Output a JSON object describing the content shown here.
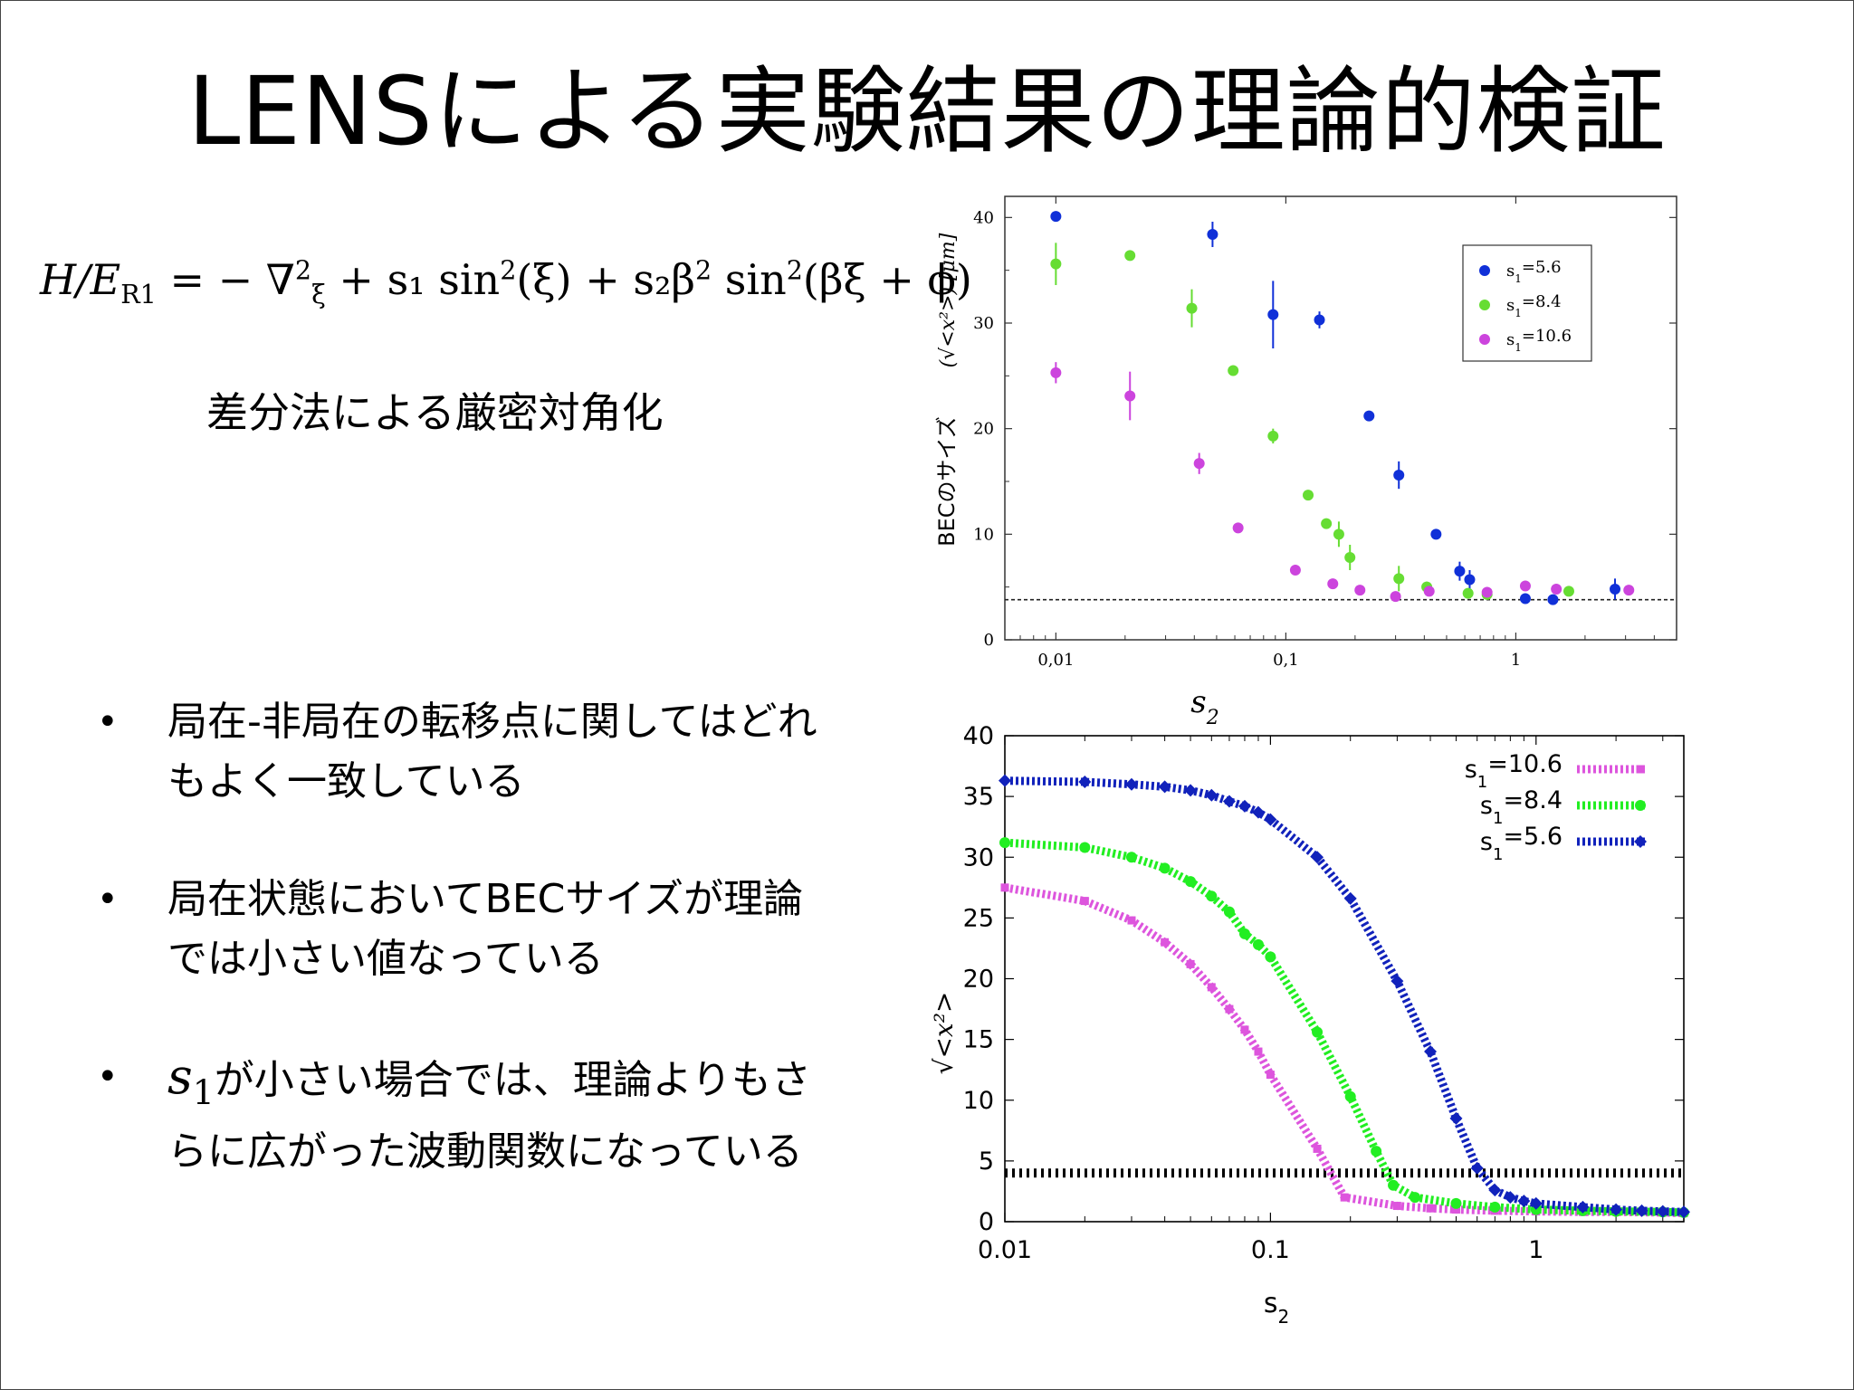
{
  "slide": {
    "title": "LENSによる実験結果の理論的検証",
    "formula": {
      "lhs": "H/E",
      "lhs_sub": "R1",
      "rhs": "= − ∇",
      "nabla_sup": "2",
      "nabla_sub": "ξ",
      "term1": "+ s₁ sin",
      "sin_sup": "2",
      "term1b": "(ξ) + s₂β",
      "beta_sup": "2",
      "term2": " sin",
      "sin2_sup": "2",
      "term2b": "(βξ + ϕ)"
    },
    "subcaption": "差分法による厳密対角化",
    "bullets": [
      {
        "line1": "局在-非局在の転移点に関してはどれ",
        "line2": "もよく一致している"
      },
      {
        "line1": "局在状態においてBECサイズが理論",
        "line2": "では小さい値なっている"
      },
      {
        "var": "s",
        "var_sub": "1",
        "line1": "が小さい場合では、理論よりもさ",
        "line2": "らに広がった波動関数になっている"
      }
    ],
    "bullet_symbol": "•"
  },
  "chart_data": [
    {
      "type": "scatter",
      "title": "",
      "xscale": "log",
      "xlim": [
        0.006,
        5
      ],
      "ylim": [
        0,
        42
      ],
      "xlabel": "s",
      "xlabel_sub": "2",
      "ylabel": "BECのサイズ",
      "ylabel_math": "(√<x²>) [μm]",
      "xticks": [
        0.01,
        0.1,
        1
      ],
      "xtick_labels": [
        "0,01",
        "0,1",
        "1"
      ],
      "yticks": [
        0,
        10,
        20,
        30,
        40
      ],
      "ytick_labels": [
        "0",
        "10",
        "20",
        "30",
        "40"
      ],
      "reference_line": 3.8,
      "legend_position": "top-right",
      "series": [
        {
          "name": "s",
          "name_sub": "1",
          "name_rest": "=5.6",
          "color": "#1030d8",
          "points": [
            [
              0.01,
              40.1,
              0
            ],
            [
              0.048,
              38.4,
              1.2
            ],
            [
              0.088,
              30.8,
              3.2
            ],
            [
              0.14,
              30.3,
              0.8
            ],
            [
              0.23,
              21.2,
              0
            ],
            [
              0.31,
              15.6,
              1.3
            ],
            [
              0.45,
              10,
              0
            ],
            [
              0.57,
              6.5,
              0.9
            ],
            [
              0.63,
              5.7,
              0.9
            ],
            [
              1.1,
              3.9,
              0
            ],
            [
              1.45,
              3.8,
              0
            ],
            [
              2.7,
              4.8,
              1.0
            ]
          ]
        },
        {
          "name": "s",
          "name_sub": "1",
          "name_rest": "=8.4",
          "color": "#66dd33",
          "points": [
            [
              0.01,
              35.6,
              2.0
            ],
            [
              0.021,
              36.4,
              0
            ],
            [
              0.039,
              31.4,
              1.8
            ],
            [
              0.059,
              25.5,
              0
            ],
            [
              0.088,
              19.3,
              0.7
            ],
            [
              0.125,
              13.7,
              0
            ],
            [
              0.15,
              11,
              0
            ],
            [
              0.17,
              10,
              1.2
            ],
            [
              0.19,
              7.8,
              1.2
            ],
            [
              0.31,
              5.8,
              1.2
            ],
            [
              0.41,
              5,
              0.5
            ],
            [
              0.62,
              4.4,
              0
            ],
            [
              0.75,
              4.3,
              0
            ],
            [
              1.7,
              4.6,
              0
            ]
          ]
        },
        {
          "name": "s",
          "name_sub": "1",
          "name_rest": "=10.6",
          "color": "#cc44dd",
          "points": [
            [
              0.01,
              25.3,
              1.0
            ],
            [
              0.021,
              23.1,
              2.3
            ],
            [
              0.042,
              16.7,
              1.0
            ],
            [
              0.062,
              10.6,
              0
            ],
            [
              0.11,
              6.6,
              0
            ],
            [
              0.16,
              5.3,
              0
            ],
            [
              0.21,
              4.7,
              0
            ],
            [
              0.3,
              4.1,
              0
            ],
            [
              0.42,
              4.6,
              0
            ],
            [
              0.75,
              4.5,
              0
            ],
            [
              1.1,
              5.1,
              0
            ],
            [
              1.5,
              4.8,
              0
            ],
            [
              3.1,
              4.7,
              0
            ]
          ]
        }
      ]
    },
    {
      "type": "line",
      "title": "",
      "xscale": "log",
      "xlim": [
        0.01,
        3.6
      ],
      "ylim": [
        0,
        40
      ],
      "xlabel": "s",
      "xlabel_sub": "2",
      "ylabel": "√<x²>",
      "xticks": [
        0.01,
        0.1,
        1
      ],
      "xtick_labels": [
        "0.01",
        "0.1",
        "1"
      ],
      "yticks": [
        0,
        5,
        10,
        15,
        20,
        25,
        30,
        35,
        40
      ],
      "ytick_labels": [
        "0",
        "5",
        "10",
        "15",
        "20",
        "25",
        "30",
        "35",
        "40"
      ],
      "reference_line": 4,
      "legend_position": "top-right",
      "series": [
        {
          "name": "s",
          "name_sub": "1",
          "name_rest": "=10.6",
          "color": "#dd55dd",
          "marker": "square",
          "points": [
            [
              0.01,
              27.5
            ],
            [
              0.02,
              26.4
            ],
            [
              0.03,
              24.8
            ],
            [
              0.04,
              23
            ],
            [
              0.05,
              21.2
            ],
            [
              0.06,
              19.3
            ],
            [
              0.07,
              17.5
            ],
            [
              0.08,
              15.8
            ],
            [
              0.09,
              14
            ],
            [
              0.1,
              12.1
            ],
            [
              0.15,
              6
            ],
            [
              0.19,
              2
            ],
            [
              0.3,
              1.3
            ],
            [
              0.4,
              1.1
            ],
            [
              0.5,
              1
            ],
            [
              0.7,
              0.9
            ],
            [
              1,
              0.85
            ],
            [
              1.5,
              0.8
            ],
            [
              2,
              0.8
            ],
            [
              3,
              0.75
            ],
            [
              3.6,
              0.7
            ]
          ]
        },
        {
          "name": "s",
          "name_sub": "1",
          "name_rest": "=8.4",
          "color": "#22ee22",
          "marker": "circle",
          "points": [
            [
              0.01,
              31.2
            ],
            [
              0.02,
              30.8
            ],
            [
              0.03,
              30
            ],
            [
              0.04,
              29.1
            ],
            [
              0.05,
              28
            ],
            [
              0.06,
              26.8
            ],
            [
              0.07,
              25.5
            ],
            [
              0.08,
              23.7
            ],
            [
              0.09,
              22.8
            ],
            [
              0.1,
              21.8
            ],
            [
              0.15,
              15.6
            ],
            [
              0.2,
              10.3
            ],
            [
              0.25,
              5.8
            ],
            [
              0.29,
              3
            ],
            [
              0.35,
              2
            ],
            [
              0.5,
              1.5
            ],
            [
              0.7,
              1.2
            ],
            [
              1,
              1
            ],
            [
              1.5,
              0.9
            ],
            [
              2,
              0.85
            ],
            [
              3,
              0.8
            ],
            [
              3.6,
              0.75
            ]
          ]
        },
        {
          "name": "s",
          "name_sub": "1",
          "name_rest": "=5.6",
          "color": "#1122bb",
          "marker": "diamond",
          "points": [
            [
              0.01,
              36.3
            ],
            [
              0.02,
              36.2
            ],
            [
              0.03,
              36
            ],
            [
              0.04,
              35.8
            ],
            [
              0.05,
              35.5
            ],
            [
              0.06,
              35.1
            ],
            [
              0.07,
              34.6
            ],
            [
              0.08,
              34.2
            ],
            [
              0.09,
              33.7
            ],
            [
              0.1,
              33.1
            ],
            [
              0.15,
              30
            ],
            [
              0.2,
              26.6
            ],
            [
              0.3,
              19.8
            ],
            [
              0.4,
              14
            ],
            [
              0.5,
              8.5
            ],
            [
              0.6,
              4.4
            ],
            [
              0.7,
              2.6
            ],
            [
              0.8,
              2
            ],
            [
              0.9,
              1.7
            ],
            [
              1,
              1.5
            ],
            [
              1.5,
              1.2
            ],
            [
              2,
              1
            ],
            [
              2.5,
              0.9
            ],
            [
              3,
              0.85
            ],
            [
              3.6,
              0.8
            ]
          ]
        }
      ]
    }
  ]
}
